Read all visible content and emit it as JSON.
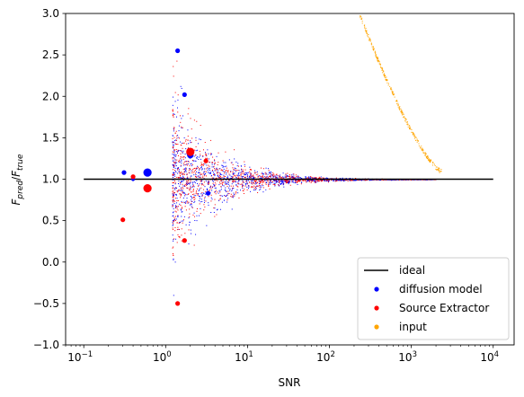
{
  "chart_data": {
    "type": "scatter",
    "xlabel": "SNR",
    "ylabel_main": "F",
    "ylabel_sub1": "pred",
    "ylabel_sub2": "true",
    "xscale": "log",
    "xlim": [
      0.06,
      18000
    ],
    "ylim": [
      -1.0,
      3.0
    ],
    "yticks": [
      -1.0,
      -0.5,
      0.0,
      0.5,
      1.0,
      1.5,
      2.0,
      2.5,
      3.0
    ],
    "ytick_labels": [
      "−1.0",
      "−0.5",
      "0.0",
      "0.5",
      "1.0",
      "1.5",
      "2.0",
      "2.5",
      "3.0"
    ],
    "xticks": [
      0.1,
      1,
      10,
      100,
      1000,
      10000
    ],
    "xtick_bases": [
      "10",
      "10",
      "10",
      "10",
      "10",
      "10"
    ],
    "xtick_exps": [
      "−1",
      "0",
      "1",
      "2",
      "3",
      "4"
    ],
    "grid": false,
    "legend_placement": "bottom-right",
    "colors": {
      "ideal": "#000000",
      "diffusion": "#0000ff",
      "sextractor": "#ff0000",
      "input": "#ffa500"
    },
    "ideal": {
      "name": "ideal",
      "x": [
        0.1,
        10000
      ],
      "y": [
        1.0,
        1.0
      ]
    },
    "series": [
      {
        "name": "diffusion model",
        "points": [
          {
            "x": 0.31,
            "y": 1.08,
            "s": 4
          },
          {
            "x": 0.6,
            "y": 1.08,
            "s": 8
          },
          {
            "x": 1.4,
            "y": 2.55,
            "s": 4
          },
          {
            "x": 1.7,
            "y": 2.02,
            "s": 4
          },
          {
            "x": 2.0,
            "y": 1.29,
            "s": 6
          },
          {
            "x": 3.3,
            "y": 0.83,
            "s": 4
          },
          {
            "x": 0.4,
            "y": 1.0,
            "s": 3
          }
        ]
      },
      {
        "name": "Source Extractor",
        "points": [
          {
            "x": 0.3,
            "y": 0.51,
            "s": 4
          },
          {
            "x": 0.4,
            "y": 1.03,
            "s": 4
          },
          {
            "x": 0.6,
            "y": 0.89,
            "s": 8
          },
          {
            "x": 2.0,
            "y": 1.33,
            "s": 8
          },
          {
            "x": 3.1,
            "y": 1.22,
            "s": 4
          },
          {
            "x": 1.7,
            "y": 0.26,
            "s": 4
          },
          {
            "x": 1.4,
            "y": -0.5,
            "s": 4
          }
        ]
      },
      {
        "name": "input",
        "points": []
      }
    ]
  }
}
